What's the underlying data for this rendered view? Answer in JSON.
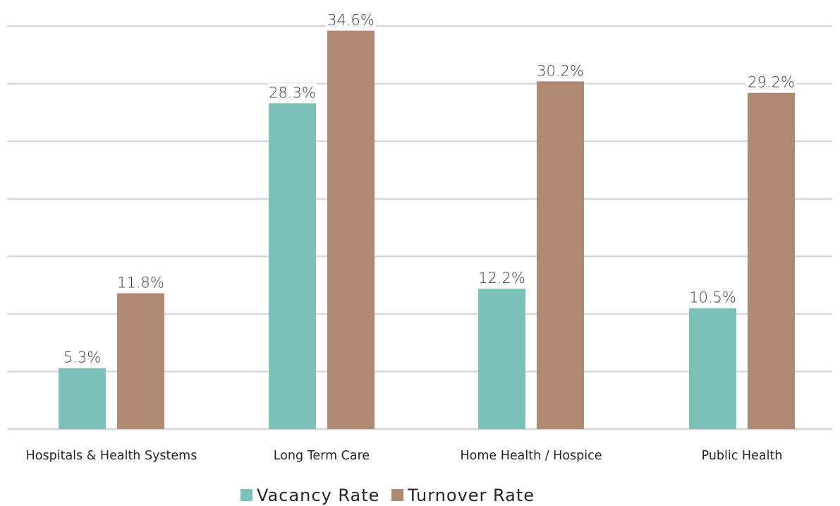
{
  "chart_data": {
    "type": "bar",
    "categories": [
      "Hospitals & Health Systems",
      "Long Term Care",
      "Home Health / Hospice",
      "Public Health"
    ],
    "series": [
      {
        "name": "Vacancy Rate",
        "color": "#7dc2b8",
        "values": [
          5.3,
          28.3,
          12.2,
          10.5
        ],
        "labels": [
          "5.3%",
          "28.3%",
          "12.2%",
          "10.5%"
        ]
      },
      {
        "name": "Turnover Rate",
        "color": "#b08975",
        "values": [
          11.8,
          34.6,
          30.2,
          29.2
        ],
        "labels": [
          "11.8%",
          "34.6%",
          "30.2%",
          "29.2%"
        ]
      }
    ],
    "ylim": [
      0,
      35
    ],
    "grid": true,
    "legend": "bottom"
  }
}
